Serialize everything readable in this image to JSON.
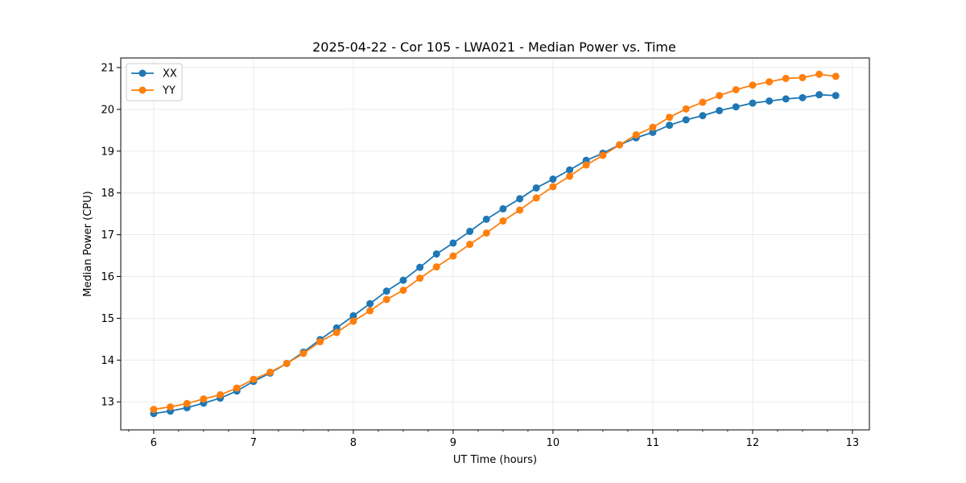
{
  "chart_data": {
    "type": "line",
    "title": "2025-04-22 - Cor 105 - LWA021 - Median Power vs. Time",
    "xlabel": "UT Time (hours)",
    "ylabel": "Median Power (CPU)",
    "xlim": [
      5.67,
      13.17
    ],
    "ylim": [
      12.33,
      21.23
    ],
    "xticks": [
      6,
      7,
      8,
      9,
      10,
      11,
      12,
      13
    ],
    "yticks": [
      13,
      14,
      15,
      16,
      17,
      18,
      19,
      20,
      21
    ],
    "grid": true,
    "legend_position": "top-left",
    "x": [
      6.0,
      6.167,
      6.333,
      6.5,
      6.667,
      6.833,
      7.0,
      7.167,
      7.333,
      7.5,
      7.667,
      7.833,
      8.0,
      8.167,
      8.333,
      8.5,
      8.667,
      8.833,
      9.0,
      9.167,
      9.333,
      9.5,
      9.667,
      9.833,
      10.0,
      10.167,
      10.333,
      10.5,
      10.667,
      10.833,
      11.0,
      11.167,
      11.333,
      11.5,
      11.667,
      11.833,
      12.0,
      12.167,
      12.333,
      12.5,
      12.667,
      12.833
    ],
    "series": [
      {
        "name": "XX",
        "color": "#1f77b4",
        "values": [
          12.72,
          12.78,
          12.86,
          12.97,
          13.09,
          13.26,
          13.49,
          13.69,
          13.92,
          14.19,
          14.49,
          14.77,
          15.06,
          15.35,
          15.65,
          15.91,
          16.22,
          16.54,
          16.8,
          17.08,
          17.37,
          17.62,
          17.86,
          18.12,
          18.33,
          18.55,
          18.78,
          18.95,
          19.15,
          19.32,
          19.45,
          19.62,
          19.75,
          19.85,
          19.97,
          20.06,
          20.15,
          20.2,
          20.25,
          20.28,
          20.35,
          20.33
        ]
      },
      {
        "name": "YY",
        "color": "#ff7f0e",
        "values": [
          12.82,
          12.88,
          12.96,
          13.07,
          13.17,
          13.33,
          13.54,
          13.71,
          13.92,
          14.16,
          14.44,
          14.66,
          14.93,
          15.18,
          15.45,
          15.67,
          15.96,
          16.23,
          16.49,
          16.77,
          17.04,
          17.33,
          17.59,
          17.88,
          18.15,
          18.4,
          18.67,
          18.9,
          19.15,
          19.39,
          19.57,
          19.81,
          20.01,
          20.17,
          20.33,
          20.47,
          20.58,
          20.66,
          20.74,
          20.76,
          20.84,
          20.79
        ]
      }
    ]
  }
}
